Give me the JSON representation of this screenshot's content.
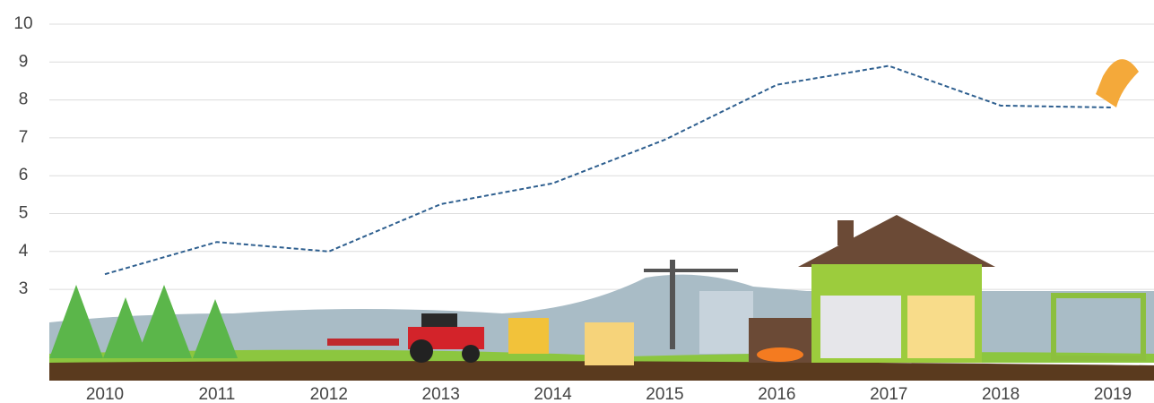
{
  "chart_data": {
    "type": "line",
    "categories": [
      "2010",
      "2011",
      "2012",
      "2013",
      "2014",
      "2015",
      "2016",
      "2017",
      "2018",
      "2019"
    ],
    "series": [
      {
        "color": "#2e5f8f",
        "values": [
          3.4,
          4.25,
          4.0,
          5.25,
          5.8,
          6.95,
          8.4,
          8.9,
          7.85,
          7.8
        ]
      }
    ],
    "ylim": [
      0,
      10
    ],
    "yticks": [
      3,
      4,
      5,
      6,
      7,
      8,
      9,
      10
    ],
    "grid": true
  }
}
